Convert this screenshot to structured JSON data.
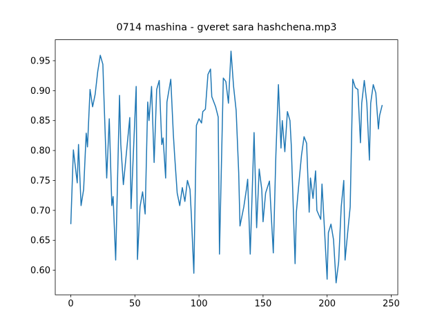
{
  "chart_data": {
    "type": "line",
    "title": "0714 mashina - gveret sara hashchena.mp3",
    "x": [
      0,
      2,
      5,
      6,
      8,
      10,
      12,
      13,
      15,
      17,
      19,
      21,
      23,
      25,
      26,
      28,
      30,
      32,
      33,
      35,
      38,
      39,
      41,
      44,
      46,
      47,
      51,
      52,
      54,
      56,
      58,
      60,
      61,
      63,
      65,
      67,
      69,
      71,
      72,
      74,
      75,
      78,
      80,
      81,
      83,
      85,
      87,
      89,
      91,
      93,
      94,
      96,
      98,
      100,
      102,
      103,
      105,
      107,
      109,
      110,
      113,
      115,
      116,
      119,
      121,
      123,
      125,
      127,
      129,
      131,
      132,
      135,
      137,
      138,
      140,
      143,
      145,
      147,
      149,
      150,
      152,
      155,
      156,
      158,
      160,
      162,
      164,
      165,
      167,
      169,
      171,
      172,
      175,
      176,
      178,
      180,
      182,
      184,
      186,
      187,
      189,
      191,
      192,
      195,
      196,
      198,
      200,
      201,
      203,
      205,
      207,
      209,
      211,
      213,
      214,
      216,
      218,
      220,
      222,
      224,
      226,
      227,
      229,
      231,
      233,
      234,
      236,
      238,
      240,
      241,
      243
    ],
    "series": [
      {
        "color": "#1f77b4",
        "values": [
          0.677,
          0.801,
          0.746,
          0.81,
          0.708,
          0.735,
          0.829,
          0.806,
          0.902,
          0.873,
          0.894,
          0.932,
          0.959,
          0.944,
          0.879,
          0.754,
          0.853,
          0.708,
          0.723,
          0.617,
          0.892,
          0.81,
          0.743,
          0.81,
          0.855,
          0.703,
          0.907,
          0.618,
          0.706,
          0.731,
          0.694,
          0.881,
          0.85,
          0.907,
          0.78,
          0.902,
          0.917,
          0.81,
          0.821,
          0.754,
          0.881,
          0.919,
          0.827,
          0.792,
          0.729,
          0.708,
          0.738,
          0.715,
          0.75,
          0.735,
          0.694,
          0.595,
          0.842,
          0.853,
          0.846,
          0.865,
          0.869,
          0.927,
          0.936,
          0.89,
          0.873,
          0.856,
          0.627,
          0.921,
          0.915,
          0.879,
          0.966,
          0.907,
          0.867,
          0.763,
          0.674,
          0.706,
          0.735,
          0.752,
          0.627,
          0.83,
          0.671,
          0.769,
          0.735,
          0.681,
          0.729,
          0.749,
          0.708,
          0.629,
          0.792,
          0.91,
          0.804,
          0.85,
          0.798,
          0.865,
          0.85,
          0.81,
          0.611,
          0.697,
          0.746,
          0.792,
          0.823,
          0.812,
          0.697,
          0.754,
          0.72,
          0.766,
          0.7,
          0.685,
          0.744,
          0.666,
          0.585,
          0.663,
          0.677,
          0.651,
          0.579,
          0.614,
          0.706,
          0.75,
          0.617,
          0.662,
          0.706,
          0.919,
          0.905,
          0.902,
          0.813,
          0.879,
          0.917,
          0.879,
          0.784,
          0.879,
          0.91,
          0.896,
          0.836,
          0.859,
          0.876
        ]
      }
    ],
    "xlim": [
      -12.15,
      255.15
    ],
    "xticks": [
      0,
      50,
      100,
      150,
      200,
      250
    ],
    "ylim": [
      0.559,
      0.985
    ],
    "yticks": [
      {
        "value": 0.6,
        "label": "0.60"
      },
      {
        "value": 0.65,
        "label": "0.65"
      },
      {
        "value": 0.7,
        "label": "0.70"
      },
      {
        "value": 0.75,
        "label": "0.75"
      },
      {
        "value": 0.8,
        "label": "0.80"
      },
      {
        "value": 0.85,
        "label": "0.85"
      },
      {
        "value": 0.9,
        "label": "0.90"
      },
      {
        "value": 0.95,
        "label": "0.95"
      }
    ]
  }
}
